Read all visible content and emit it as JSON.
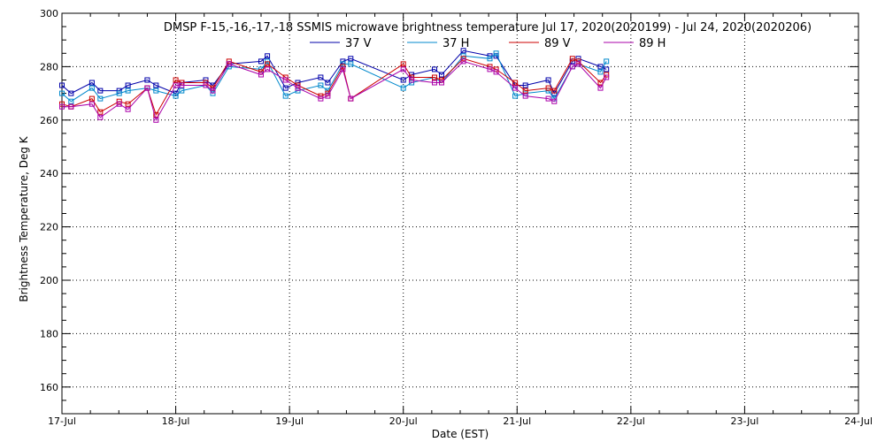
{
  "chart_data": {
    "type": "line",
    "title": "DMSP F-15,-16,-17,-18 SSMIS microwave brightness temperature Jul 17, 2020(2020199) - Jul 24, 2020(2020206)",
    "xlabel": "Date (EST)",
    "ylabel": "Brightness Temperature, Deg K",
    "x_tick_labels": [
      "17-Jul",
      "18-Jul",
      "19-Jul",
      "20-Jul",
      "21-Jul",
      "22-Jul",
      "23-Jul",
      "24-Jul"
    ],
    "y_tick_labels": [
      "160",
      "180",
      "200",
      "220",
      "240",
      "260",
      "280",
      "300"
    ],
    "xlim": [
      "2020-07-17 00:00",
      "2020-07-24 00:00"
    ],
    "ylim": [
      150,
      300
    ],
    "grid": true,
    "legend_position": "top",
    "marker": "square",
    "series": [
      {
        "name": "37 V",
        "color": "#0000aa",
        "x": [
          "2020-07-17 00:00",
          "2020-07-17 01:55",
          "2020-07-17 06:20",
          "2020-07-17 08:05",
          "2020-07-17 12:05",
          "2020-07-17 13:55",
          "2020-07-17 18:00",
          "2020-07-17 19:50",
          "2020-07-18 00:00",
          "2020-07-18 01:15",
          "2020-07-18 06:20",
          "2020-07-18 07:50",
          "2020-07-18 11:15",
          "2020-07-18 18:00",
          "2020-07-18 19:20",
          "2020-07-18 23:10",
          "2020-07-19 01:45",
          "2020-07-19 06:35",
          "2020-07-19 08:05",
          "2020-07-19 11:15",
          "2020-07-19 12:55",
          "2020-07-20 00:00",
          "2020-07-20 01:45",
          "2020-07-20 06:35",
          "2020-07-20 08:05",
          "2020-07-20 12:40",
          "2020-07-20 18:15",
          "2020-07-20 19:35",
          "2020-07-20 23:35",
          "2020-07-21 01:45",
          "2020-07-21 06:35",
          "2020-07-21 07:50",
          "2020-07-21 11:40",
          "2020-07-21 12:55",
          "2020-07-21 17:35",
          "2020-07-21 18:50"
        ],
        "values": [
          273,
          270,
          274,
          271,
          271,
          273,
          275,
          273,
          270,
          274,
          275,
          273,
          281,
          282,
          284,
          272,
          274,
          276,
          274,
          282,
          283,
          275,
          277,
          279,
          277,
          286,
          284,
          284,
          273,
          273,
          275,
          270,
          282,
          283,
          280,
          279
        ]
      },
      {
        "name": "37 H",
        "color": "#0088cc",
        "x": [
          "2020-07-17 00:00",
          "2020-07-17 01:55",
          "2020-07-17 06:20",
          "2020-07-17 08:05",
          "2020-07-17 12:05",
          "2020-07-17 13:55",
          "2020-07-17 18:00",
          "2020-07-17 19:50",
          "2020-07-18 00:00",
          "2020-07-18 01:15",
          "2020-07-18 06:20",
          "2020-07-18 07:50",
          "2020-07-18 11:15",
          "2020-07-18 18:00",
          "2020-07-18 19:20",
          "2020-07-18 23:10",
          "2020-07-19 01:45",
          "2020-07-19 06:35",
          "2020-07-19 08:05",
          "2020-07-19 11:15",
          "2020-07-19 12:55",
          "2020-07-20 00:00",
          "2020-07-20 01:45",
          "2020-07-20 06:35",
          "2020-07-20 08:05",
          "2020-07-20 12:40",
          "2020-07-20 18:15",
          "2020-07-20 19:35",
          "2020-07-20 23:35",
          "2020-07-21 01:45",
          "2020-07-21 06:35",
          "2020-07-21 07:50",
          "2020-07-21 11:40",
          "2020-07-21 12:55",
          "2020-07-21 17:35",
          "2020-07-21 18:50"
        ],
        "values": [
          270,
          267,
          272,
          268,
          270,
          271,
          272,
          271,
          269,
          271,
          273,
          270,
          280,
          279,
          282,
          269,
          271,
          273,
          271,
          281,
          281,
          272,
          274,
          276,
          274,
          284,
          283,
          285,
          269,
          270,
          271,
          268,
          280,
          281,
          278,
          282
        ]
      },
      {
        "name": "89 V",
        "color": "#cc0000",
        "x": [
          "2020-07-17 00:00",
          "2020-07-17 01:55",
          "2020-07-17 06:20",
          "2020-07-17 08:05",
          "2020-07-17 12:05",
          "2020-07-17 13:55",
          "2020-07-17 18:00",
          "2020-07-17 19:50",
          "2020-07-18 00:00",
          "2020-07-18 01:15",
          "2020-07-18 06:20",
          "2020-07-18 07:50",
          "2020-07-18 11:15",
          "2020-07-18 18:00",
          "2020-07-18 19:20",
          "2020-07-18 23:10",
          "2020-07-19 01:45",
          "2020-07-19 06:35",
          "2020-07-19 08:05",
          "2020-07-19 11:15",
          "2020-07-19 12:55",
          "2020-07-20 00:00",
          "2020-07-20 01:45",
          "2020-07-20 06:35",
          "2020-07-20 08:05",
          "2020-07-20 12:40",
          "2020-07-20 18:15",
          "2020-07-20 19:35",
          "2020-07-20 23:35",
          "2020-07-21 01:45",
          "2020-07-21 06:35",
          "2020-07-21 07:50",
          "2020-07-21 11:40",
          "2020-07-21 12:55",
          "2020-07-21 17:35",
          "2020-07-21 18:50"
        ],
        "values": [
          266,
          265,
          268,
          263,
          267,
          266,
          272,
          262,
          275,
          274,
          274,
          272,
          282,
          278,
          281,
          276,
          273,
          269,
          270,
          280,
          268,
          281,
          276,
          276,
          275,
          283,
          280,
          279,
          274,
          271,
          272,
          271,
          283,
          282,
          274,
          277
        ]
      },
      {
        "name": "89 H",
        "color": "#aa00aa",
        "x": [
          "2020-07-17 00:00",
          "2020-07-17 01:55",
          "2020-07-17 06:20",
          "2020-07-17 08:05",
          "2020-07-17 12:05",
          "2020-07-17 13:55",
          "2020-07-17 18:00",
          "2020-07-17 19:50",
          "2020-07-18 00:00",
          "2020-07-18 01:15",
          "2020-07-18 06:20",
          "2020-07-18 07:50",
          "2020-07-18 11:15",
          "2020-07-18 18:00",
          "2020-07-18 19:20",
          "2020-07-18 23:10",
          "2020-07-19 01:45",
          "2020-07-19 06:35",
          "2020-07-19 08:05",
          "2020-07-19 11:15",
          "2020-07-19 12:55",
          "2020-07-20 00:00",
          "2020-07-20 01:45",
          "2020-07-20 06:35",
          "2020-07-20 08:05",
          "2020-07-20 12:40",
          "2020-07-20 18:15",
          "2020-07-20 19:35",
          "2020-07-20 23:35",
          "2020-07-21 01:45",
          "2020-07-21 06:35",
          "2020-07-21 07:50",
          "2020-07-21 11:40",
          "2020-07-21 12:55",
          "2020-07-21 17:35",
          "2020-07-21 18:50"
        ],
        "values": [
          265,
          265,
          266,
          261,
          266,
          264,
          272,
          260,
          273,
          273,
          273,
          271,
          281,
          277,
          279,
          275,
          272,
          268,
          269,
          279,
          268,
          279,
          275,
          274,
          274,
          282,
          279,
          278,
          272,
          269,
          268,
          267,
          280,
          281,
          272,
          276
        ]
      }
    ]
  }
}
